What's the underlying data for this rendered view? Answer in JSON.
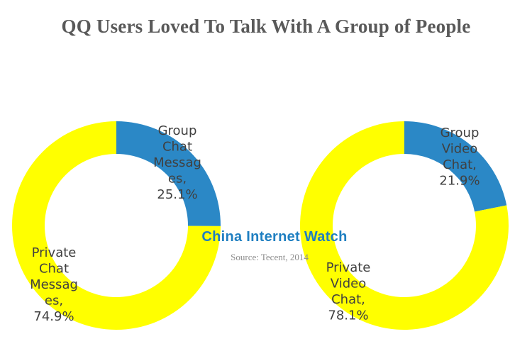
{
  "colors": {
    "yellow": "#ffff00",
    "blue": "#2b88c6",
    "title": "#595959",
    "label": "#404040"
  },
  "chart_data": [
    {
      "type": "pie",
      "title": "QQ Users Loved To Talk With A Group of People",
      "categories": [
        "Group Chat Messages",
        "Private Chat Messages"
      ],
      "values": [
        25.1,
        74.9
      ],
      "labels": [
        [
          "Group",
          "Chat",
          "Messag",
          "es,",
          "25.1%"
        ],
        [
          "Private",
          "Chat",
          "Messag",
          "es,",
          "74.9%"
        ]
      ]
    },
    {
      "type": "pie",
      "categories": [
        "Group Video Chat",
        "Private Video Chat"
      ],
      "values": [
        21.9,
        78.1
      ],
      "labels": [
        [
          "Group",
          "Video",
          "Chat,",
          "21.9%"
        ],
        [
          "Private",
          "Video",
          "Chat,",
          "78.1%"
        ]
      ]
    }
  ],
  "watermark": "China Internet Watch",
  "source": "Source: Tecent, 2014"
}
